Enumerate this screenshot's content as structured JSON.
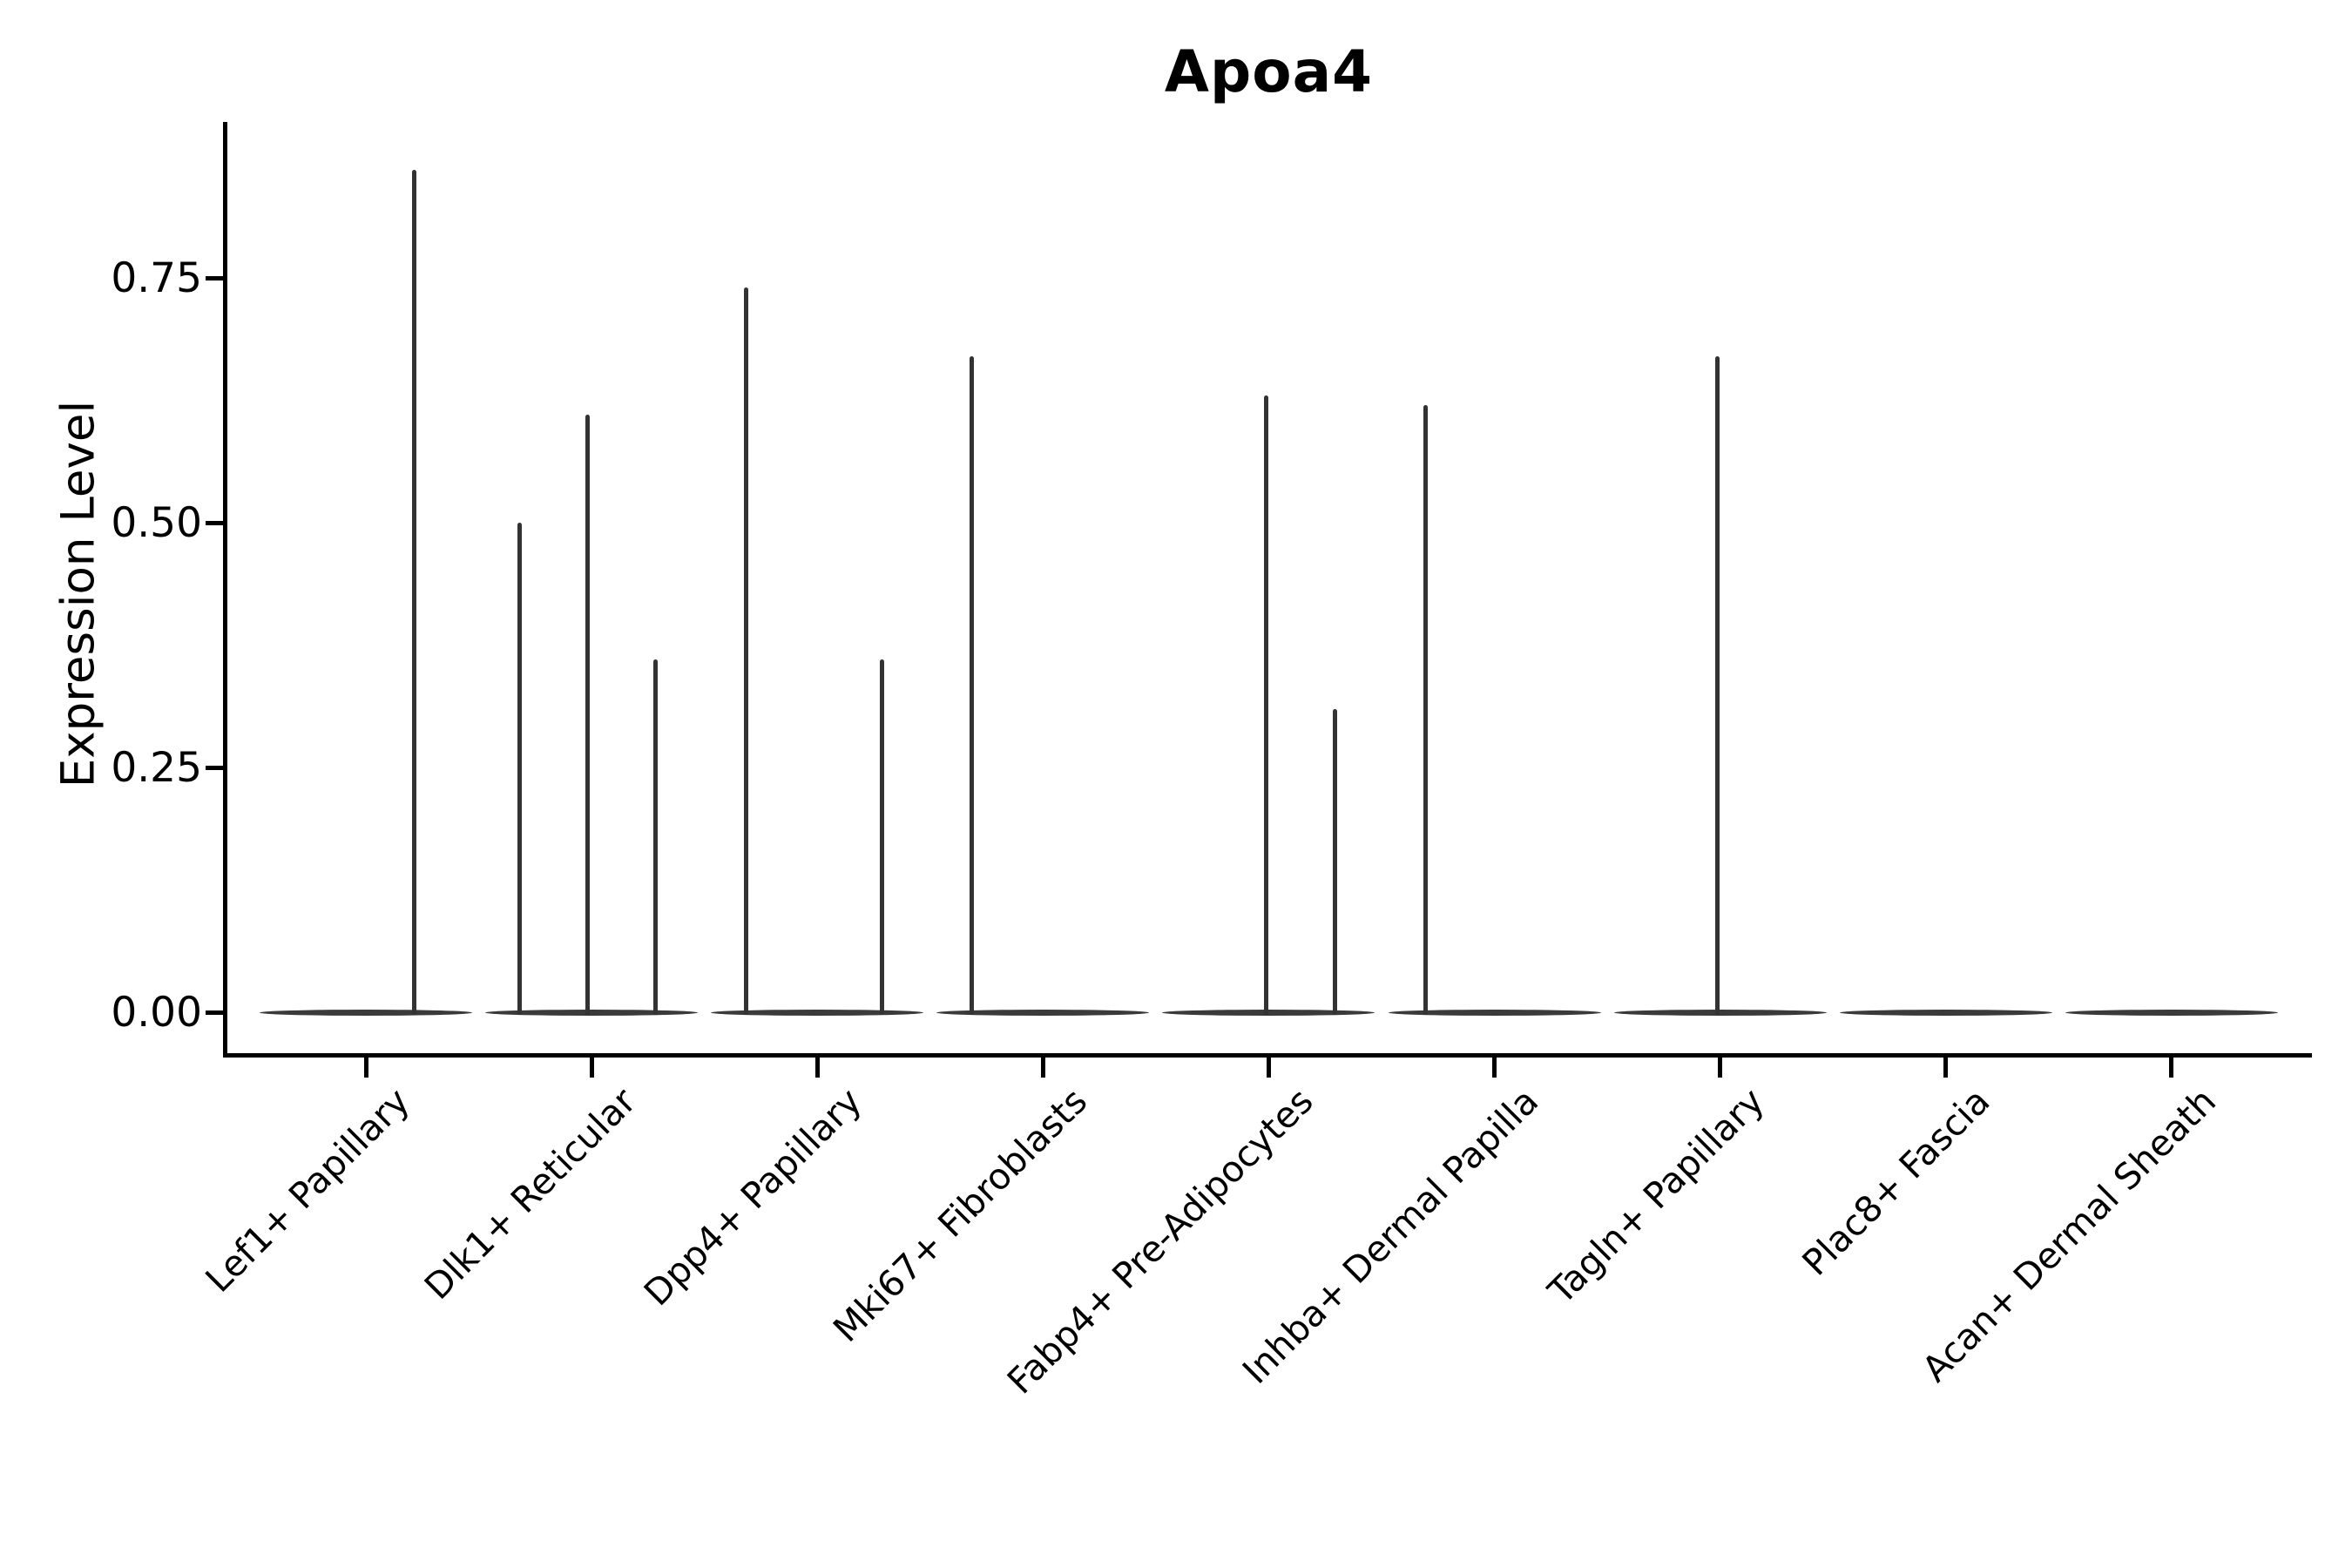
{
  "figure": {
    "background": "#ffffff"
  },
  "colors": {
    "axis": "#000000",
    "violin": "#3a3a3a",
    "spike": "#333333",
    "text": "#000000"
  },
  "chart_data": {
    "type": "violin",
    "title": "Apoa4",
    "xlabel": "",
    "ylabel": "Expression Level",
    "grid": false,
    "legend": "none",
    "ytick_labels": [
      "0.00",
      "0.25",
      "0.50",
      "0.75"
    ],
    "ytick_values": [
      0.0,
      0.25,
      0.5,
      0.75
    ],
    "ylim": [
      -0.04,
      0.91
    ],
    "categories": [
      "Lef1+ Papillary",
      "Dlk1+ Reticular",
      "Dpp4+ Papillary",
      "Mki67+ Fibroblasts",
      "Fabp4+ Pre-Adipocytes",
      "Inhba+ Dermal Papilla",
      "Tagln+ Papillary",
      "Plac8+ Fascia",
      "Acan+ Dermal Sheath"
    ],
    "series": [
      {
        "category": "Lef1+ Papillary",
        "baseline_value": 0.0,
        "spikes": [
          {
            "x_offset": 55,
            "value": 0.86
          }
        ]
      },
      {
        "category": "Dlk1+ Reticular",
        "baseline_value": 0.0,
        "spikes": [
          {
            "x_offset": -83,
            "value": 0.5
          },
          {
            "x_offset": -5,
            "value": 0.61
          },
          {
            "x_offset": 73,
            "value": 0.36
          }
        ]
      },
      {
        "category": "Dpp4+ Papillary",
        "baseline_value": 0.0,
        "spikes": [
          {
            "x_offset": -82,
            "value": 0.74
          },
          {
            "x_offset": 74,
            "value": 0.36
          }
        ]
      },
      {
        "category": "Mki67+ Fibroblasts",
        "baseline_value": 0.0,
        "spikes": [
          {
            "x_offset": -82,
            "value": 0.67
          }
        ]
      },
      {
        "category": "Fabp4+ Pre-Adipocytes",
        "baseline_value": 0.0,
        "spikes": [
          {
            "x_offset": -3,
            "value": 0.63
          },
          {
            "x_offset": 76,
            "value": 0.31
          }
        ]
      },
      {
        "category": "Inhba+ Dermal Papilla",
        "baseline_value": 0.0,
        "spikes": [
          {
            "x_offset": -79,
            "value": 0.62
          }
        ]
      },
      {
        "category": "Tagln+ Papillary",
        "baseline_value": 0.0,
        "spikes": [
          {
            "x_offset": -3,
            "value": 0.67
          }
        ]
      },
      {
        "category": "Plac8+ Fascia",
        "baseline_value": 0.0,
        "spikes": []
      },
      {
        "category": "Acan+ Dermal Sheath",
        "baseline_value": 0.0,
        "spikes": []
      }
    ]
  }
}
